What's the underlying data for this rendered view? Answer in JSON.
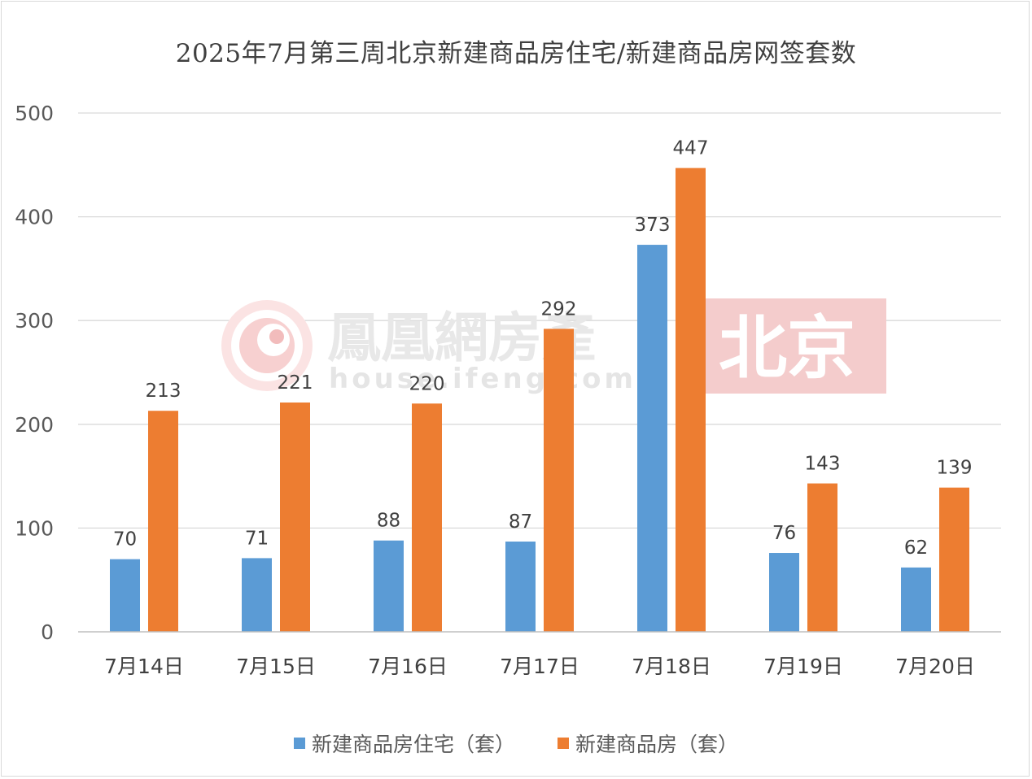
{
  "chart_data": {
    "type": "bar",
    "title": "2025年7月第三周北京新建商品房住宅/新建商品房网签套数",
    "categories": [
      "7月14日",
      "7月15日",
      "7月16日",
      "7月17日",
      "7月18日",
      "7月19日",
      "7月20日"
    ],
    "series": [
      {
        "name": "新建商品房住宅（套）",
        "values": [
          70,
          71,
          88,
          87,
          373,
          76,
          62
        ],
        "color": "#5b9bd5"
      },
      {
        "name": "新建商品房（套）",
        "values": [
          213,
          221,
          220,
          292,
          447,
          143,
          139
        ],
        "color": "#ed7d31"
      }
    ],
    "ylim": [
      0,
      500
    ],
    "yticks": [
      0,
      100,
      200,
      300,
      400,
      500
    ],
    "grid": true,
    "legend_position": "bottom",
    "data_labels": true
  },
  "watermark": {
    "brand_cn": "鳳凰網房產",
    "brand_en": "house.ifeng.com",
    "city_badge": "北京",
    "badge_color": "#f4cccc"
  }
}
